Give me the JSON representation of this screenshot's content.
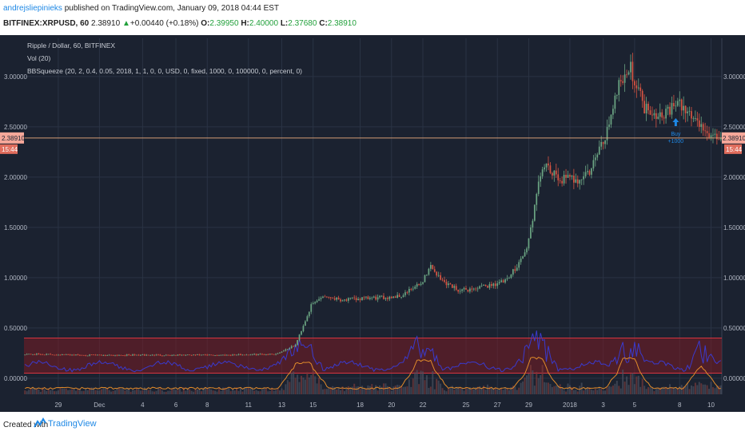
{
  "header": {
    "author": "andrejsliepinieks",
    "published_text": "published on TradingView.com, January 09, 2018 04:44 EST",
    "symbol": "BITFINEX:XRPUSD, 60",
    "last": "2.38910",
    "change_arrow": "▲",
    "change": "+0.00440 (+0.18%)",
    "o_label": "O:",
    "o_value": "2.39950",
    "h_label": "H:",
    "h_value": "2.40000",
    "l_label": "L:",
    "l_value": "2.37680",
    "c_label": "C:",
    "c_value": "2.38910"
  },
  "legend": {
    "title": "Ripple / Dollar, 60, BITFINEX",
    "volume": "Vol (20)",
    "indicator": "BBSqueeze (20, 2, 0.4, 0.05, 2018, 1, 1, 0, 0, USD, 0, fixed, 1000, 0, 100000, 0, percent, 0)"
  },
  "price_tag": {
    "value": "2.38910",
    "time": "15:44"
  },
  "signal": {
    "label": "Buy",
    "qty": "+1000"
  },
  "footer": {
    "created_with": "Created with",
    "brand": "TradingView"
  },
  "colors": {
    "background": "#1b2230",
    "up": "#6ba583",
    "down": "#d75442",
    "price_line": "#e8a87c",
    "band_fill": "#7a1c24",
    "band_line": "#d6343f",
    "momentum": "#3a3acd",
    "squeeze": "#e08a2a",
    "accent": "#1e88e5"
  },
  "chart_data": {
    "type": "candlestick",
    "title": "Ripple / Dollar, 60, BITFINEX",
    "y_ticks": [
      "3.00000",
      "2.50000",
      "2.00000",
      "1.50000",
      "1.00000",
      "0.50000",
      "0.00000"
    ],
    "y_tick_values": [
      3.0,
      2.5,
      2.0,
      1.5,
      1.0,
      0.5,
      0.0
    ],
    "ylim": [
      -0.16,
      3.38
    ],
    "x_ticks": [
      "29",
      "Dec",
      "4",
      "6",
      "8",
      "11",
      "13",
      "15",
      "18",
      "20",
      "22",
      "25",
      "27",
      "29",
      "2018",
      "3",
      "5",
      "8",
      "10"
    ],
    "x_tick_idx": [
      17,
      38,
      60,
      77,
      93,
      114,
      131,
      147,
      171,
      187,
      203,
      225,
      241,
      257,
      278,
      295,
      311,
      334,
      350
    ],
    "n_bars": 356,
    "close_anchors": [
      [
        0,
        0.24
      ],
      [
        30,
        0.23
      ],
      [
        60,
        0.23
      ],
      [
        100,
        0.23
      ],
      [
        128,
        0.24
      ],
      [
        138,
        0.33
      ],
      [
        146,
        0.72
      ],
      [
        152,
        0.82
      ],
      [
        162,
        0.78
      ],
      [
        172,
        0.79
      ],
      [
        182,
        0.8
      ],
      [
        192,
        0.82
      ],
      [
        202,
        0.94
      ],
      [
        207,
        1.12
      ],
      [
        212,
        0.98
      ],
      [
        222,
        0.87
      ],
      [
        232,
        0.9
      ],
      [
        246,
        0.97
      ],
      [
        256,
        1.28
      ],
      [
        264,
        2.12
      ],
      [
        272,
        1.98
      ],
      [
        282,
        1.98
      ],
      [
        288,
        2.05
      ],
      [
        296,
        2.4
      ],
      [
        303,
        2.95
      ],
      [
        309,
        3.08
      ],
      [
        316,
        2.7
      ],
      [
        324,
        2.62
      ],
      [
        333,
        2.72
      ],
      [
        340,
        2.62
      ],
      [
        350,
        2.39
      ],
      [
        355,
        2.38
      ]
    ],
    "upper_band": 0.4,
    "lower_band": 0.05,
    "last_price": 2.3891,
    "buy_signal": {
      "bar": 332,
      "price": 2.57,
      "label": "Buy",
      "qty": "+1000"
    }
  }
}
